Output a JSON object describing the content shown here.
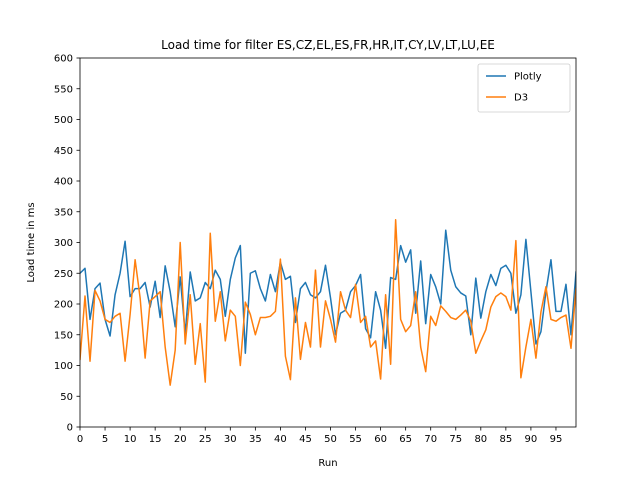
{
  "chart_data": {
    "type": "line",
    "title": "Load time for filter ES,CZ,EL,ES,FR,HR,IT,CY,LV,LT,LU,EE",
    "xlabel": "Run",
    "ylabel": "Load time in ms",
    "xlim": [
      0,
      99
    ],
    "ylim": [
      0,
      600
    ],
    "xticks": [
      0,
      5,
      10,
      15,
      20,
      25,
      30,
      35,
      40,
      45,
      50,
      55,
      60,
      65,
      70,
      75,
      80,
      85,
      90,
      95
    ],
    "xtick_labels": [
      "0",
      "5",
      "10",
      "15",
      "20",
      "25",
      "30",
      "35",
      "40",
      "45",
      "50",
      "55",
      "60",
      "65",
      "70",
      "75",
      "80",
      "85",
      "90",
      "95"
    ],
    "yticks": [
      0,
      50,
      100,
      150,
      200,
      250,
      300,
      350,
      400,
      450,
      500,
      550,
      600
    ],
    "ytick_labels": [
      "0",
      "50",
      "100",
      "150",
      "200",
      "250",
      "300",
      "350",
      "400",
      "450",
      "500",
      "550",
      "600"
    ],
    "grid": false,
    "legend_position": "top-right",
    "series": [
      {
        "name": "Plotly",
        "color": "#1f77b4",
        "values": [
          250,
          258,
          175,
          225,
          234,
          175,
          148,
          215,
          250,
          302,
          212,
          225,
          225,
          235,
          195,
          237,
          178,
          262,
          220,
          163,
          244,
          152,
          252,
          205,
          210,
          235,
          225,
          255,
          240,
          180,
          240,
          275,
          295,
          120,
          250,
          254,
          225,
          205,
          248,
          220,
          268,
          240,
          245,
          170,
          225,
          235,
          215,
          210,
          220,
          263,
          210,
          150,
          185,
          190,
          220,
          230,
          248,
          160,
          145,
          220,
          190,
          128,
          243,
          240,
          295,
          268,
          288,
          185,
          270,
          168,
          248,
          228,
          200,
          320,
          255,
          228,
          218,
          213,
          150,
          242,
          177,
          220,
          248,
          230,
          258,
          263,
          250,
          185,
          215,
          305,
          220,
          135,
          155,
          220,
          272,
          188,
          188,
          232,
          150,
          252
        ]
      },
      {
        "name": "D3",
        "color": "#ff7f0e",
        "values": [
          110,
          213,
          107,
          222,
          205,
          175,
          170,
          180,
          185,
          107,
          183,
          272,
          210,
          112,
          205,
          212,
          220,
          130,
          68,
          125,
          300,
          135,
          215,
          102,
          168,
          73,
          315,
          172,
          220,
          140,
          190,
          180,
          100,
          203,
          183,
          150,
          178,
          178,
          180,
          188,
          273,
          115,
          77,
          210,
          110,
          170,
          130,
          255,
          130,
          205,
          175,
          138,
          220,
          190,
          178,
          232,
          170,
          180,
          130,
          140,
          78,
          215,
          102,
          337,
          175,
          155,
          165,
          220,
          130,
          90,
          180,
          165,
          197,
          188,
          178,
          175,
          182,
          190,
          172,
          120,
          140,
          158,
          195,
          212,
          218,
          212,
          190,
          303,
          80,
          130,
          175,
          112,
          187,
          228,
          175,
          172,
          178,
          182,
          128,
          225
        ]
      }
    ]
  }
}
